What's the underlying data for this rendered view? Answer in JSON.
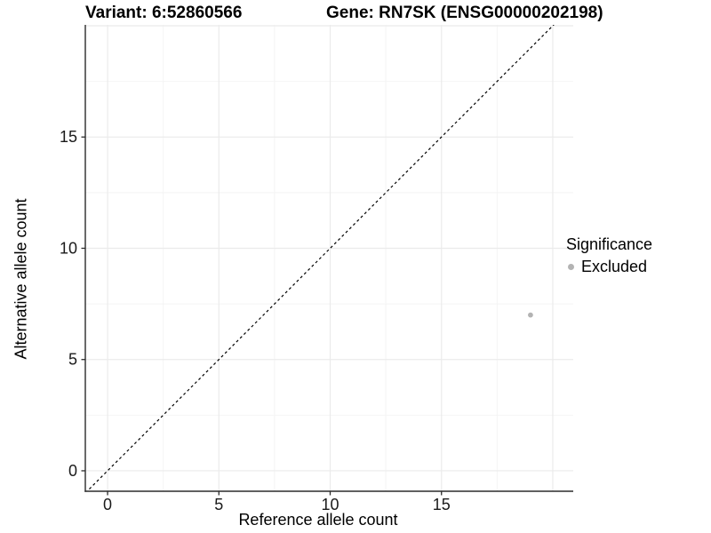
{
  "chart_data": {
    "type": "scatter",
    "title_left": "Variant: 6:52860566",
    "title_right": "Gene: RN7SK (ENSG00000202198)",
    "xlabel": "Reference allele count",
    "ylabel": "Alternative allele count",
    "xlim": [
      -1.0,
      20.92
    ],
    "ylim": [
      -0.92,
      20.04
    ],
    "x_ticks": [
      0,
      5,
      10,
      15
    ],
    "y_ticks": [
      0,
      5,
      10,
      15
    ],
    "grid": {
      "major": [
        0,
        5,
        10,
        15,
        20
      ],
      "minor": [
        2.5,
        7.5,
        12.5,
        17.5
      ],
      "major_color": "#ebebeb",
      "minor_color": "#f4f4f4"
    },
    "identity_line": {
      "equation": "y = x",
      "style": "dashed",
      "color": "#000000"
    },
    "series": [
      {
        "name": "Excluded",
        "color": "#b3b3b3",
        "points": [
          {
            "x": 19,
            "y": 7
          }
        ]
      }
    ],
    "legend": {
      "title": "Significance",
      "position": "right",
      "items": [
        {
          "label": "Excluded",
          "color": "#b3b3b3",
          "marker": "circle"
        }
      ]
    },
    "axis_color": "#2b2b2b",
    "tick_label_color": "#1a1a1a",
    "background": "#ffffff"
  }
}
